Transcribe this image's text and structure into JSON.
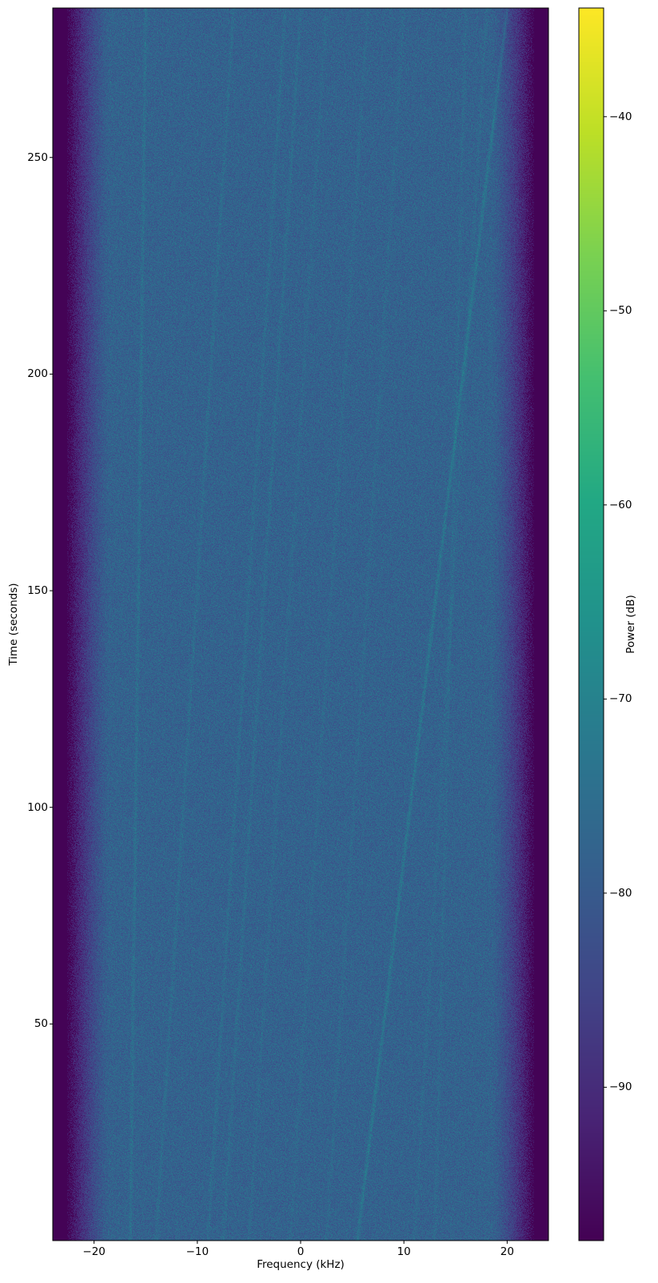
{
  "chart_data": {
    "type": "heatmap",
    "title": "",
    "xlabel": "Frequency (kHz)",
    "ylabel": "Time (seconds)",
    "xlim": [
      -24,
      24
    ],
    "ylim": [
      0,
      284.5
    ],
    "xticks": [
      -20,
      -10,
      0,
      10,
      20
    ],
    "xtick_labels": [
      "−20",
      "−10",
      "0",
      "10",
      "20"
    ],
    "yticks": [
      50,
      100,
      150,
      200,
      250
    ],
    "ytick_labels": [
      "50",
      "100",
      "150",
      "200",
      "250"
    ],
    "grid": false,
    "colormap": "viridis",
    "colorbar": {
      "label": "Power (dB)",
      "clim": [
        -97.9,
        -34.4
      ],
      "ticks": [
        -40,
        -50,
        -60,
        -70,
        -80,
        -90
      ],
      "tick_labels": [
        "−40",
        "−50",
        "−60",
        "−70",
        "−80",
        "−90"
      ],
      "placement": "right"
    },
    "noise_floor_db": -78,
    "band_edge_floor_db": -97,
    "passband_khz": [
      -20,
      20
    ],
    "drift_lines": [
      {
        "start_khz": 5.5,
        "start_s": 0,
        "end_khz": 20.0,
        "end_s": 284,
        "strength_db": 6
      },
      {
        "start_khz": -16.5,
        "start_s": 0,
        "end_khz": -15.0,
        "end_s": 284,
        "strength_db": 4
      },
      {
        "start_khz": -14.0,
        "start_s": 0,
        "end_khz": -6.5,
        "end_s": 284,
        "strength_db": 3
      },
      {
        "start_khz": -9.0,
        "start_s": 0,
        "end_khz": -1.5,
        "end_s": 284,
        "strength_db": 3
      },
      {
        "start_khz": -7.5,
        "start_s": 0,
        "end_khz": 0.0,
        "end_s": 284,
        "strength_db": 3
      },
      {
        "start_khz": -5.0,
        "start_s": 0,
        "end_khz": 2.5,
        "end_s": 284,
        "strength_db": 2
      },
      {
        "start_khz": -1.0,
        "start_s": 0,
        "end_khz": 6.5,
        "end_s": 284,
        "strength_db": 2
      },
      {
        "start_khz": 2.5,
        "start_s": 0,
        "end_khz": 10.0,
        "end_s": 284,
        "strength_db": 2
      },
      {
        "start_khz": 11.0,
        "start_s": 0,
        "end_khz": 18.0,
        "end_s": 284,
        "strength_db": 2
      },
      {
        "start_khz": 13.0,
        "start_s": 0,
        "end_khz": 16.0,
        "end_s": 284,
        "strength_db": 2
      }
    ]
  }
}
